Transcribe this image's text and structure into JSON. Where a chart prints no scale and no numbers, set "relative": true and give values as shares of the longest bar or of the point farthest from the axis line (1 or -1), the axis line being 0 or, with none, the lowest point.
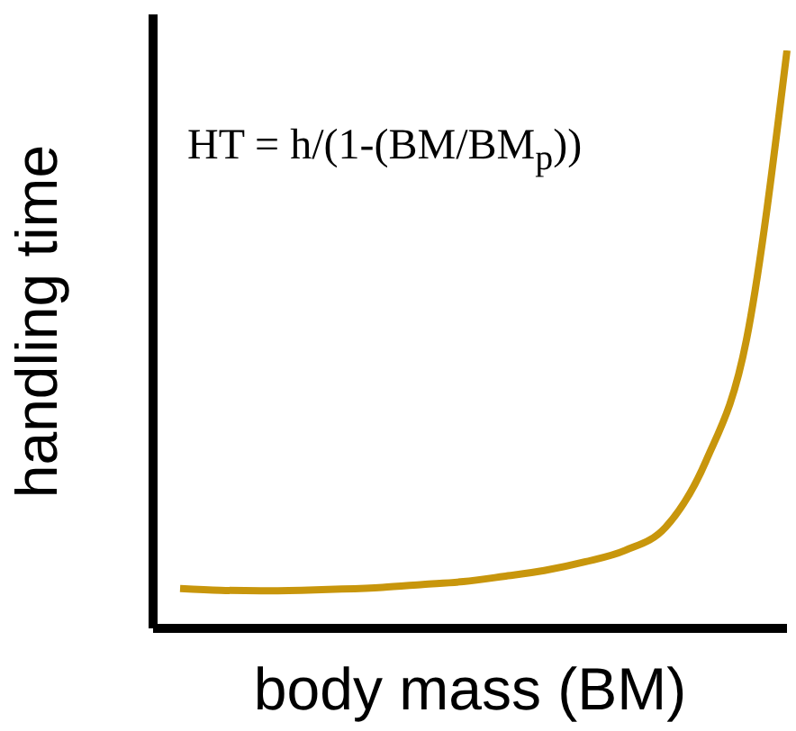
{
  "chart_data": {
    "type": "line",
    "relative": true,
    "xlabel": "body mass (BM)",
    "ylabel": "handling time",
    "annotations": [
      "HT = h/(1-(BM/BM$_{p}$))"
    ],
    "categories": [
      null,
      null,
      null,
      null,
      null,
      null,
      null,
      null,
      null,
      null,
      null,
      null,
      null,
      null,
      null,
      null
    ],
    "marker": "none",
    "legend": false,
    "grid": false,
    "series": [
      {
        "color": "#c8960c",
        "values": [
          0.069,
          0.066,
          0.065,
          0.066,
          0.068,
          0.071,
          0.076,
          0.081,
          0.09,
          0.1,
          0.115,
          0.135,
          0.175,
          0.29,
          0.5,
          1.0
        ]
      }
    ]
  }
}
